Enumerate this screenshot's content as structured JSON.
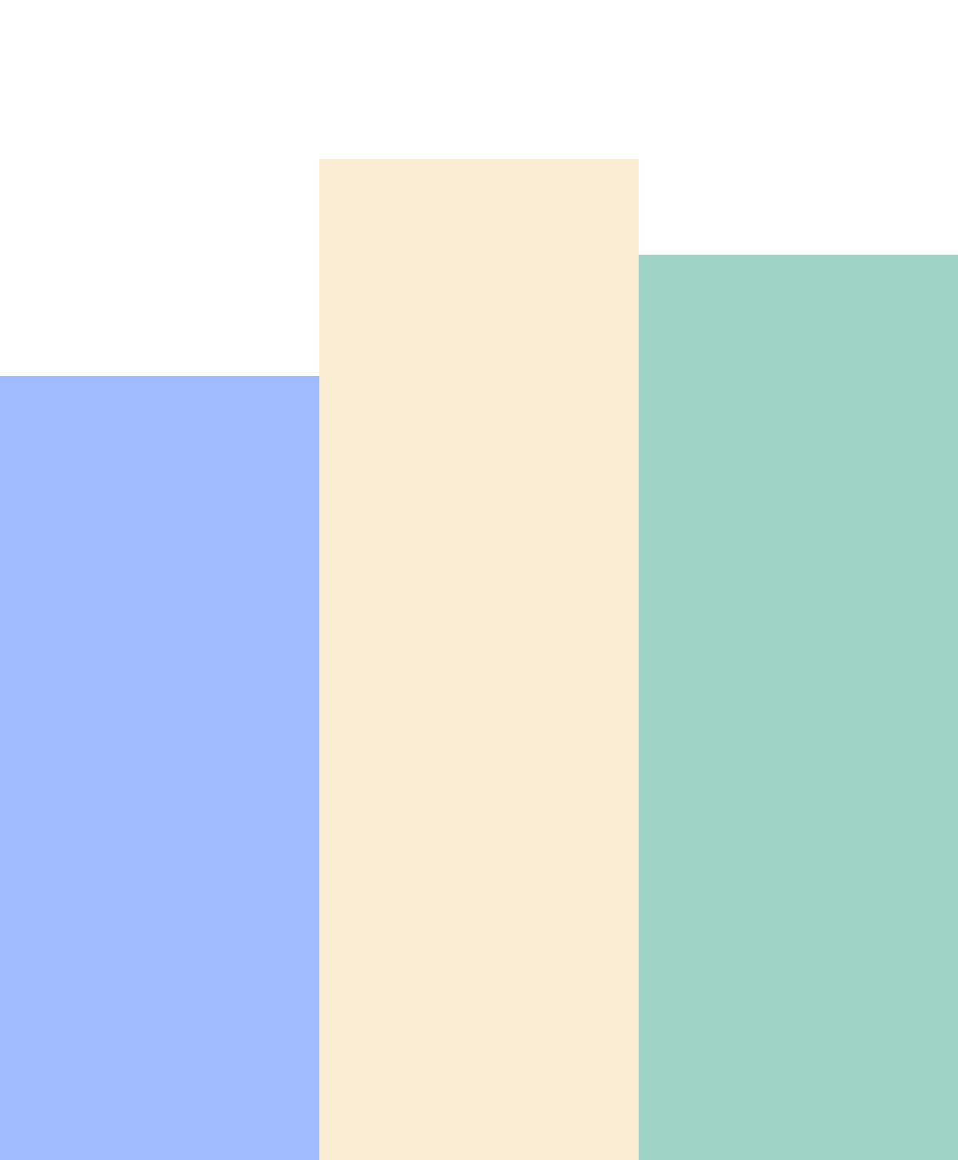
{
  "chart_data": {
    "type": "bar",
    "categories": [
      null,
      null,
      null
    ],
    "values": [
      982,
      1254,
      1134
    ],
    "colors": [
      "#a0bbff",
      "#faedd4",
      "#9dd1c5"
    ],
    "ylim": [
      0,
      1453
    ]
  }
}
